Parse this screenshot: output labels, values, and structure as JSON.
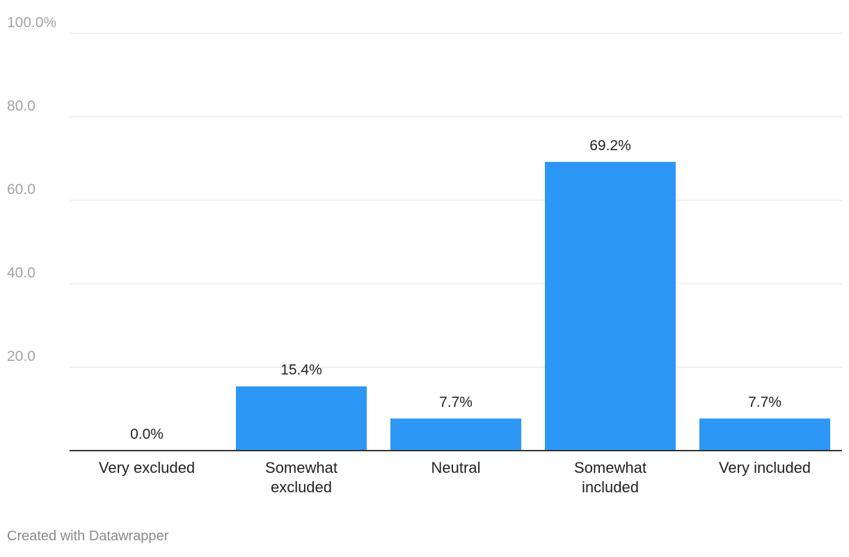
{
  "chart_data": {
    "type": "bar",
    "categories": [
      "Very excluded",
      "Somewhat excluded",
      "Neutral",
      "Somewhat included",
      "Very included"
    ],
    "category_lines": [
      [
        "Very excluded"
      ],
      [
        "Somewhat",
        "excluded"
      ],
      [
        "Neutral"
      ],
      [
        "Somewhat",
        "included"
      ],
      [
        "Very included"
      ]
    ],
    "values": [
      0.0,
      15.4,
      7.7,
      69.2,
      7.7
    ],
    "value_labels": [
      "0.0%",
      "15.4%",
      "7.7%",
      "69.2%",
      "7.7%"
    ],
    "ylim": [
      0,
      100
    ],
    "yticks": [
      20,
      40,
      60,
      80,
      100
    ],
    "ytick_labels": [
      "20.0",
      "40.0",
      "60.0",
      "80.0",
      "100.0%"
    ],
    "grid": true,
    "bar_color": "#2d97f5",
    "gridline_color": "#e1e1e1",
    "axis_color": "#333333",
    "tick_label_color": "#a3a3a3",
    "label_color": "#222222"
  },
  "footer": {
    "credit": "Created with Datawrapper"
  }
}
